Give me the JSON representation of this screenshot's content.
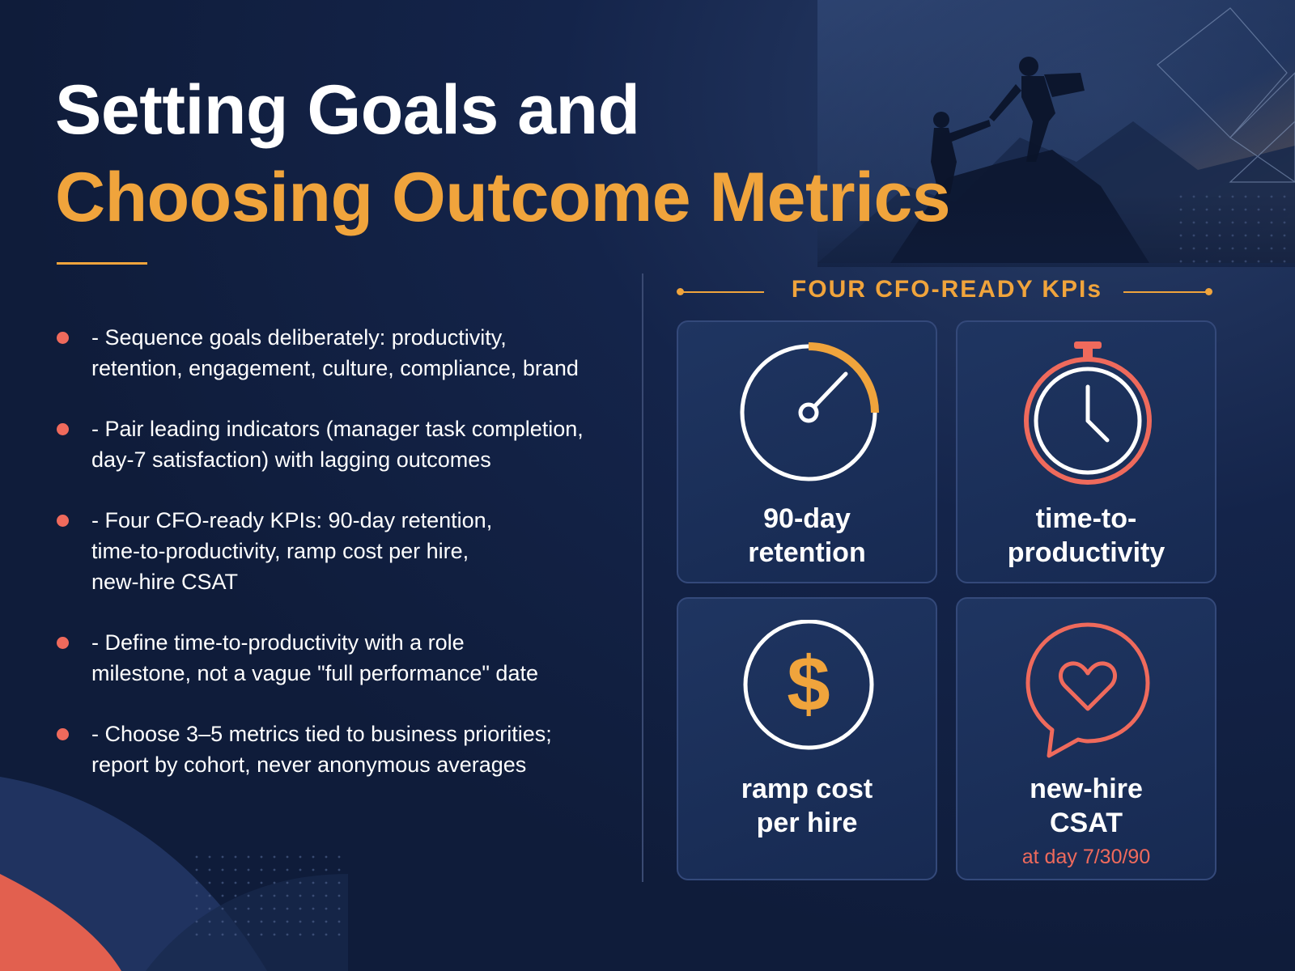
{
  "title": {
    "line1": "Setting Goals and",
    "line2": "Choosing Outcome Metrics"
  },
  "bullets": [
    {
      "line1": "- Sequence goals deliberately: productivity,",
      "line2": "retention, engagement, culture, compliance, brand"
    },
    {
      "line1": "- Pair leading indicators (manager task completion,",
      "line2": "day-7 satisfaction) with lagging outcomes"
    },
    {
      "line1": "- Four CFO-ready KPIs: 90-day retention,",
      "line2": "time-to-productivity, ramp cost per hire,",
      "line3": "new-hire CSAT"
    },
    {
      "line1": "- Define time-to-productivity with a role",
      "line2": "milestone, not a vague \"full performance\" date"
    },
    {
      "line1": "- Choose 3–5 metrics tied to business priorities;",
      "line2": "report by cohort, never anonymous averages"
    }
  ],
  "kpi_section": {
    "header": "FOUR CFO-READY KPIs",
    "cards": [
      {
        "icon": "gauge-icon",
        "line1": "90-day",
        "line2": "retention"
      },
      {
        "icon": "stopwatch-icon",
        "line1": "time-to-",
        "line2": "productivity"
      },
      {
        "icon": "dollar-icon",
        "line1": "ramp cost",
        "line2": "per hire"
      },
      {
        "icon": "heart-chat-icon",
        "line1": "new-hire",
        "line2": "CSAT",
        "sub": "at day 7/30/90"
      }
    ]
  },
  "colors": {
    "background": "#0f1c3a",
    "card": "#1c3160",
    "accent_orange": "#f0a43c",
    "accent_coral": "#ef6a5c",
    "text": "#ffffff"
  }
}
